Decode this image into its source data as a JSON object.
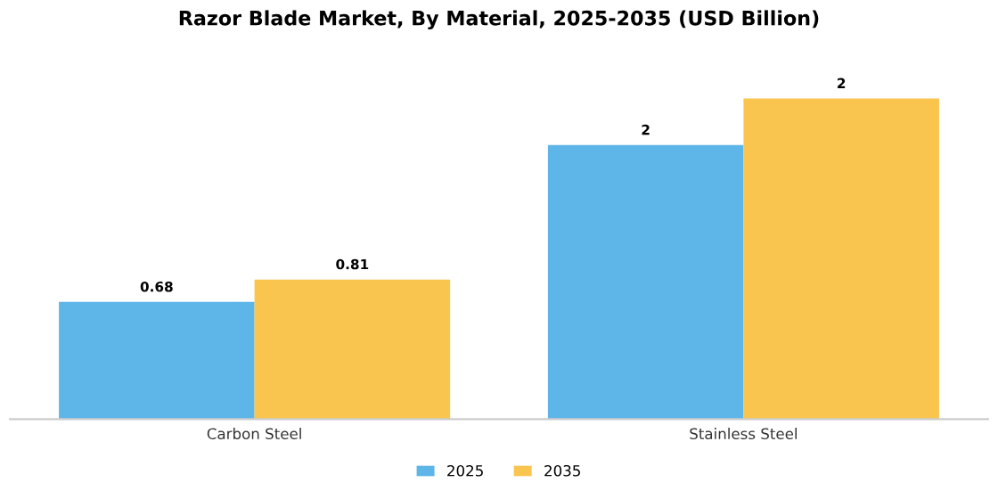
{
  "chart_data": {
    "type": "bar",
    "title": "Razor Blade Market, By Material, 2025-2035 (USD Billion)",
    "categories": [
      "Carbon Steel",
      "Stainless Steel"
    ],
    "series": [
      {
        "name": "2025",
        "color": "#5db5e8",
        "values": [
          0.68,
          1.59
        ],
        "value_labels": [
          "0.68",
          "2"
        ]
      },
      {
        "name": "2035",
        "color": "#f9c54e",
        "values": [
          0.81,
          1.86
        ],
        "value_labels": [
          "0.81",
          "2"
        ]
      }
    ],
    "legend": "bottom",
    "grid": false
  }
}
